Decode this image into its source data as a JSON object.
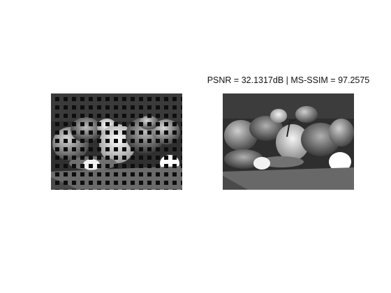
{
  "figure": {
    "left_image": {
      "title": "",
      "description_icon": "peppers-masked-grid-icon",
      "mask_color": "#111111"
    },
    "right_image": {
      "title": "PSNR = 32.1317dB   |   MS-SSIM = 97.2575",
      "description_icon": "peppers-reconstructed-icon"
    }
  }
}
